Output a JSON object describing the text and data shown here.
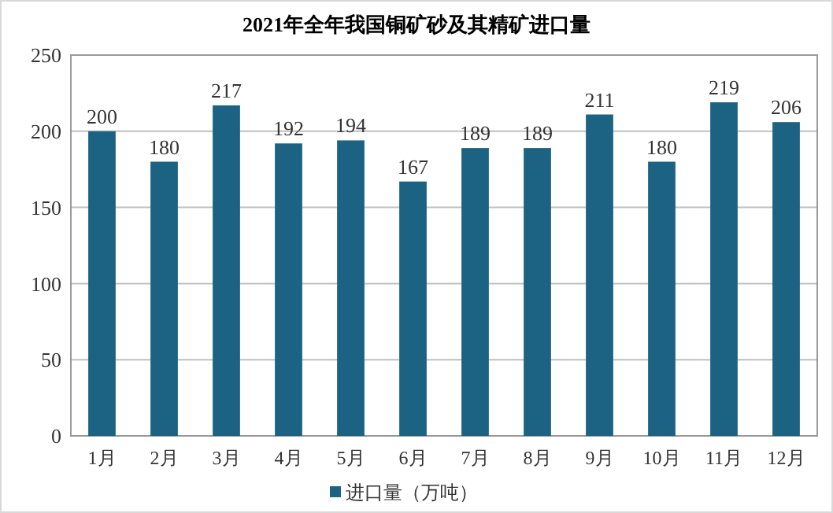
{
  "chart_data": {
    "type": "bar",
    "title": "2021年全年我国铜矿砂及其精矿进口量",
    "categories": [
      "1月",
      "2月",
      "3月",
      "4月",
      "5月",
      "6月",
      "7月",
      "8月",
      "9月",
      "10月",
      "11月",
      "12月"
    ],
    "series": [
      {
        "name": "进口量（万吨）",
        "color": "#1c6383",
        "values": [
          200,
          180,
          217,
          192,
          194,
          167,
          189,
          189,
          211,
          180,
          219,
          206
        ]
      }
    ],
    "ylim": [
      0,
      250
    ],
    "yticks": [
      0,
      50,
      100,
      150,
      200,
      250
    ],
    "grid": "y",
    "legend": "bottom",
    "data_labels": true
  }
}
